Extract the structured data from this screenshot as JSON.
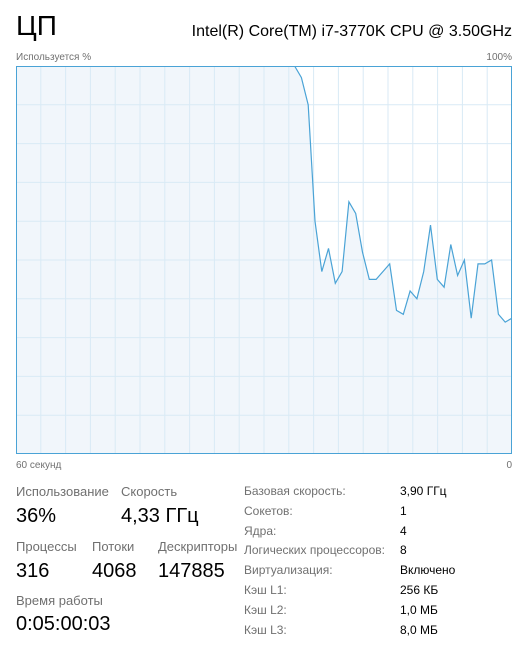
{
  "header": {
    "title": "ЦП",
    "cpu_name": "Intel(R) Core(TM) i7-3770K CPU @ 3.50GHz"
  },
  "graph": {
    "ylabel": "Используется %",
    "ymax_label": "100%",
    "xlabel_left": "60 секунд",
    "xlabel_right": "0",
    "line_color": "#4aa3d6",
    "fill_color": "#f1f6fb",
    "border_color": "#4aa3d6",
    "grid_color": "#d9eaf5",
    "series_usage_percent": [
      100,
      100,
      100,
      100,
      100,
      100,
      100,
      100,
      100,
      100,
      100,
      100,
      100,
      100,
      100,
      100,
      100,
      100,
      100,
      100,
      100,
      100,
      100,
      100,
      100,
      100,
      100,
      100,
      100,
      100,
      100,
      100,
      100,
      100,
      100,
      100,
      100,
      100,
      100,
      100,
      100,
      100,
      97,
      90,
      60,
      47,
      53,
      44,
      47,
      65,
      62,
      52,
      45,
      45,
      47,
      49,
      37,
      36,
      42,
      40,
      47,
      59,
      45,
      43,
      54,
      46,
      50,
      35,
      49,
      49,
      50,
      36,
      34,
      35
    ]
  },
  "stats": {
    "usage_label": "Использование",
    "usage_value": "36%",
    "speed_label": "Скорость",
    "speed_value": "4,33 ГГц",
    "processes_label": "Процессы",
    "processes_value": "316",
    "threads_label": "Потоки",
    "threads_value": "4068",
    "handles_label": "Дескрипторы",
    "handles_value": "147885",
    "uptime_label": "Время работы",
    "uptime_value": "0:05:00:03"
  },
  "details": [
    {
      "label": "Базовая скорость:",
      "value": "3,90 ГГц"
    },
    {
      "label": "Сокетов:",
      "value": "1"
    },
    {
      "label": "Ядра:",
      "value": "4"
    },
    {
      "label": "Логических процессоров:",
      "value": "8"
    },
    {
      "label": "Виртуализация:",
      "value": "Включено"
    },
    {
      "label": "Кэш L1:",
      "value": "256 КБ"
    },
    {
      "label": "Кэш L2:",
      "value": "1,0 МБ"
    },
    {
      "label": "Кэш L3:",
      "value": "8,0 МБ"
    }
  ]
}
